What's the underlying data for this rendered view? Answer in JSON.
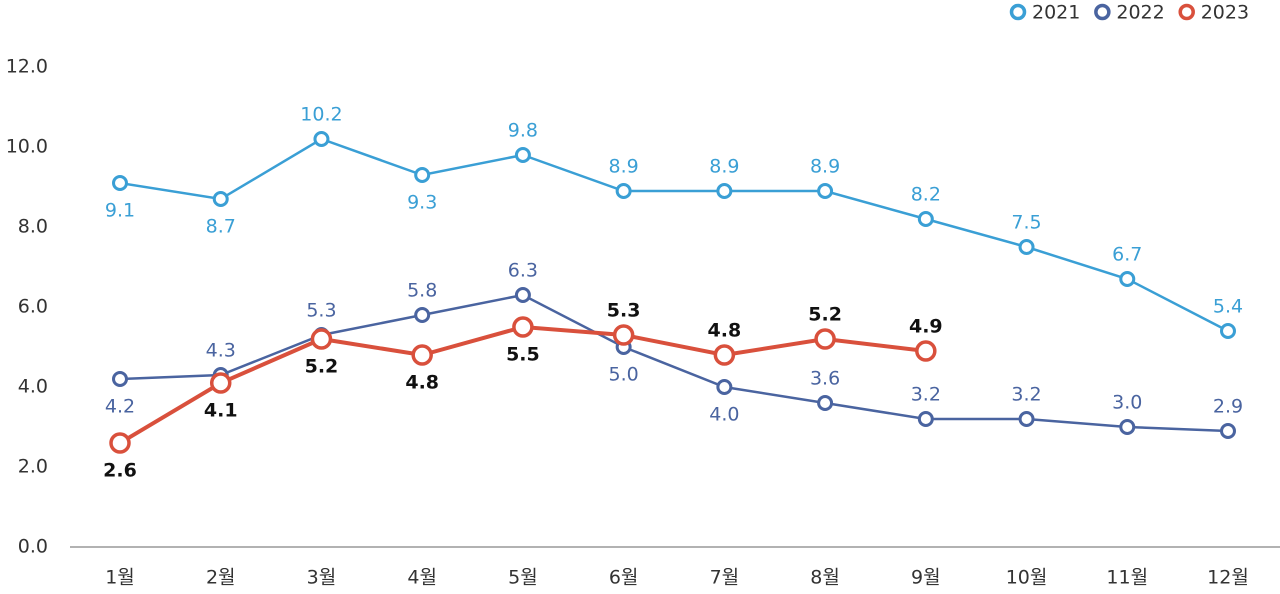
{
  "chart_data": {
    "type": "line",
    "categories": [
      "1월",
      "2월",
      "3월",
      "4월",
      "5월",
      "6월",
      "7월",
      "8월",
      "9월",
      "10월",
      "11월",
      "12월"
    ],
    "series": [
      {
        "name": "2021",
        "color": "#3a9fd5",
        "values": [
          9.1,
          8.7,
          10.2,
          9.3,
          9.8,
          8.9,
          8.9,
          8.9,
          8.2,
          7.5,
          6.7,
          5.4
        ]
      },
      {
        "name": "2022",
        "color": "#4a64a0",
        "values": [
          4.2,
          4.3,
          5.3,
          5.8,
          6.3,
          5.0,
          4.0,
          3.6,
          3.2,
          3.2,
          3.0,
          2.9
        ],
        "value_labels": [
          "4.2",
          "4.3",
          "5.3",
          "5.8",
          "6.3",
          "5.0",
          "4.0",
          "3.6",
          "3.2",
          "3.2",
          "3.0",
          "2.9"
        ]
      },
      {
        "name": "2023",
        "color": "#d9503c",
        "values": [
          2.6,
          4.1,
          5.2,
          4.8,
          5.5,
          5.3,
          4.8,
          5.2,
          4.9,
          null,
          null,
          null
        ]
      }
    ],
    "ylim": [
      0,
      12
    ],
    "yticks": [
      {
        "value": 0,
        "label": "0.0"
      },
      {
        "value": 2,
        "label": "2.0"
      },
      {
        "value": 4,
        "label": "4.0"
      },
      {
        "value": 6,
        "label": "6.0"
      },
      {
        "value": 8,
        "label": "8.0"
      },
      {
        "value": 10,
        "label": "10.0"
      },
      {
        "value": 12,
        "label": "12.0"
      }
    ],
    "legend": "top-right"
  }
}
